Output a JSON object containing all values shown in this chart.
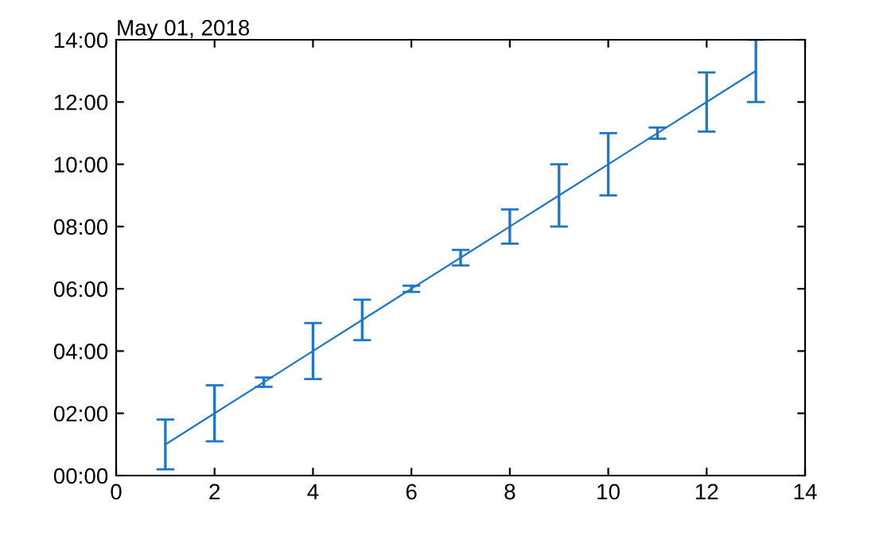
{
  "chart_data": {
    "type": "line",
    "title": "May 01, 2018",
    "x": [
      1,
      2,
      3,
      4,
      5,
      6,
      7,
      8,
      9,
      10,
      11,
      12,
      13
    ],
    "series": [
      {
        "color": "#1f77c4",
        "values": [
          1,
          2,
          3,
          4,
          5,
          6,
          7,
          8,
          9,
          10,
          11,
          12,
          13
        ],
        "errors": [
          0.8,
          0.9,
          0.15,
          0.9,
          0.65,
          0.1,
          0.25,
          0.55,
          1.0,
          1.0,
          0.18,
          0.95,
          1.0
        ]
      }
    ],
    "xlim": [
      0,
      14
    ],
    "xticks": [
      0,
      2,
      4,
      6,
      8,
      10,
      12,
      14
    ],
    "ylim": [
      0,
      14
    ],
    "yticks": [
      {
        "value": 0,
        "label": "00:00"
      },
      {
        "value": 2,
        "label": "02:00"
      },
      {
        "value": 4,
        "label": "04:00"
      },
      {
        "value": 6,
        "label": "06:00"
      },
      {
        "value": 8,
        "label": "08:00"
      },
      {
        "value": 10,
        "label": "10:00"
      },
      {
        "value": 12,
        "label": "12:00"
      },
      {
        "value": 14,
        "label": "14:00"
      }
    ],
    "grid": false,
    "legend": false,
    "marker": "none",
    "line_style": "solid"
  }
}
